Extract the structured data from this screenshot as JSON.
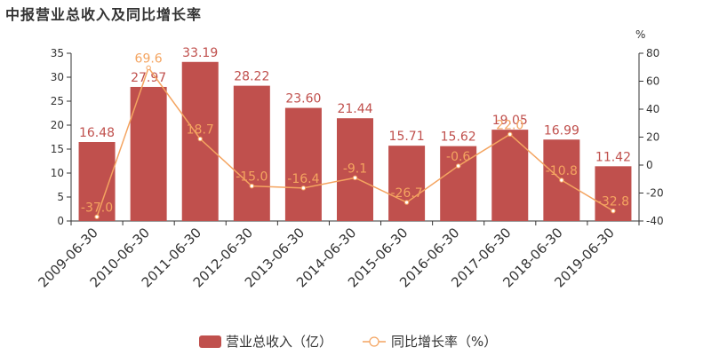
{
  "chart_data": {
    "type": "bar",
    "title": "中报营业总收入及同比增长率",
    "categories": [
      "2009-06-30",
      "2010-06-30",
      "2011-06-30",
      "2012-06-30",
      "2013-06-30",
      "2014-06-30",
      "2015-06-30",
      "2016-06-30",
      "2017-06-30",
      "2018-06-30",
      "2019-06-30"
    ],
    "series": [
      {
        "name": "营业总收入（亿）",
        "type": "bar",
        "axis": "left",
        "color": "#c0504d",
        "values": [
          16.48,
          27.97,
          33.19,
          28.22,
          23.6,
          21.44,
          15.71,
          15.62,
          19.05,
          16.99,
          11.42
        ],
        "labels": [
          "16.48",
          "27.97",
          "33.19",
          "28.22",
          "23.60",
          "21.44",
          "15.71",
          "15.62",
          "19.05",
          "16.99",
          "11.42"
        ]
      },
      {
        "name": "同比增长率（%）",
        "type": "line",
        "axis": "right",
        "color": "#f4a460",
        "values": [
          -37.0,
          69.6,
          18.7,
          -15.0,
          -16.4,
          -9.1,
          -26.7,
          -0.6,
          22.0,
          -10.8,
          -32.8
        ],
        "labels": [
          "-37.0",
          "69.6",
          "18.7",
          "-15.0",
          "-16.4",
          "-9.1",
          "-26.7",
          "-0.6",
          "22.0",
          "-10.8",
          "-32.8"
        ]
      }
    ],
    "y_left": {
      "min": 0,
      "max": 35,
      "ticks": [
        0,
        5,
        10,
        15,
        20,
        25,
        30,
        35
      ]
    },
    "y_right": {
      "min": -40,
      "max": 80,
      "ticks": [
        -40,
        -20,
        0,
        20,
        40,
        60,
        80
      ],
      "unit": "%"
    },
    "grid": false,
    "legend": "bottom-center"
  }
}
